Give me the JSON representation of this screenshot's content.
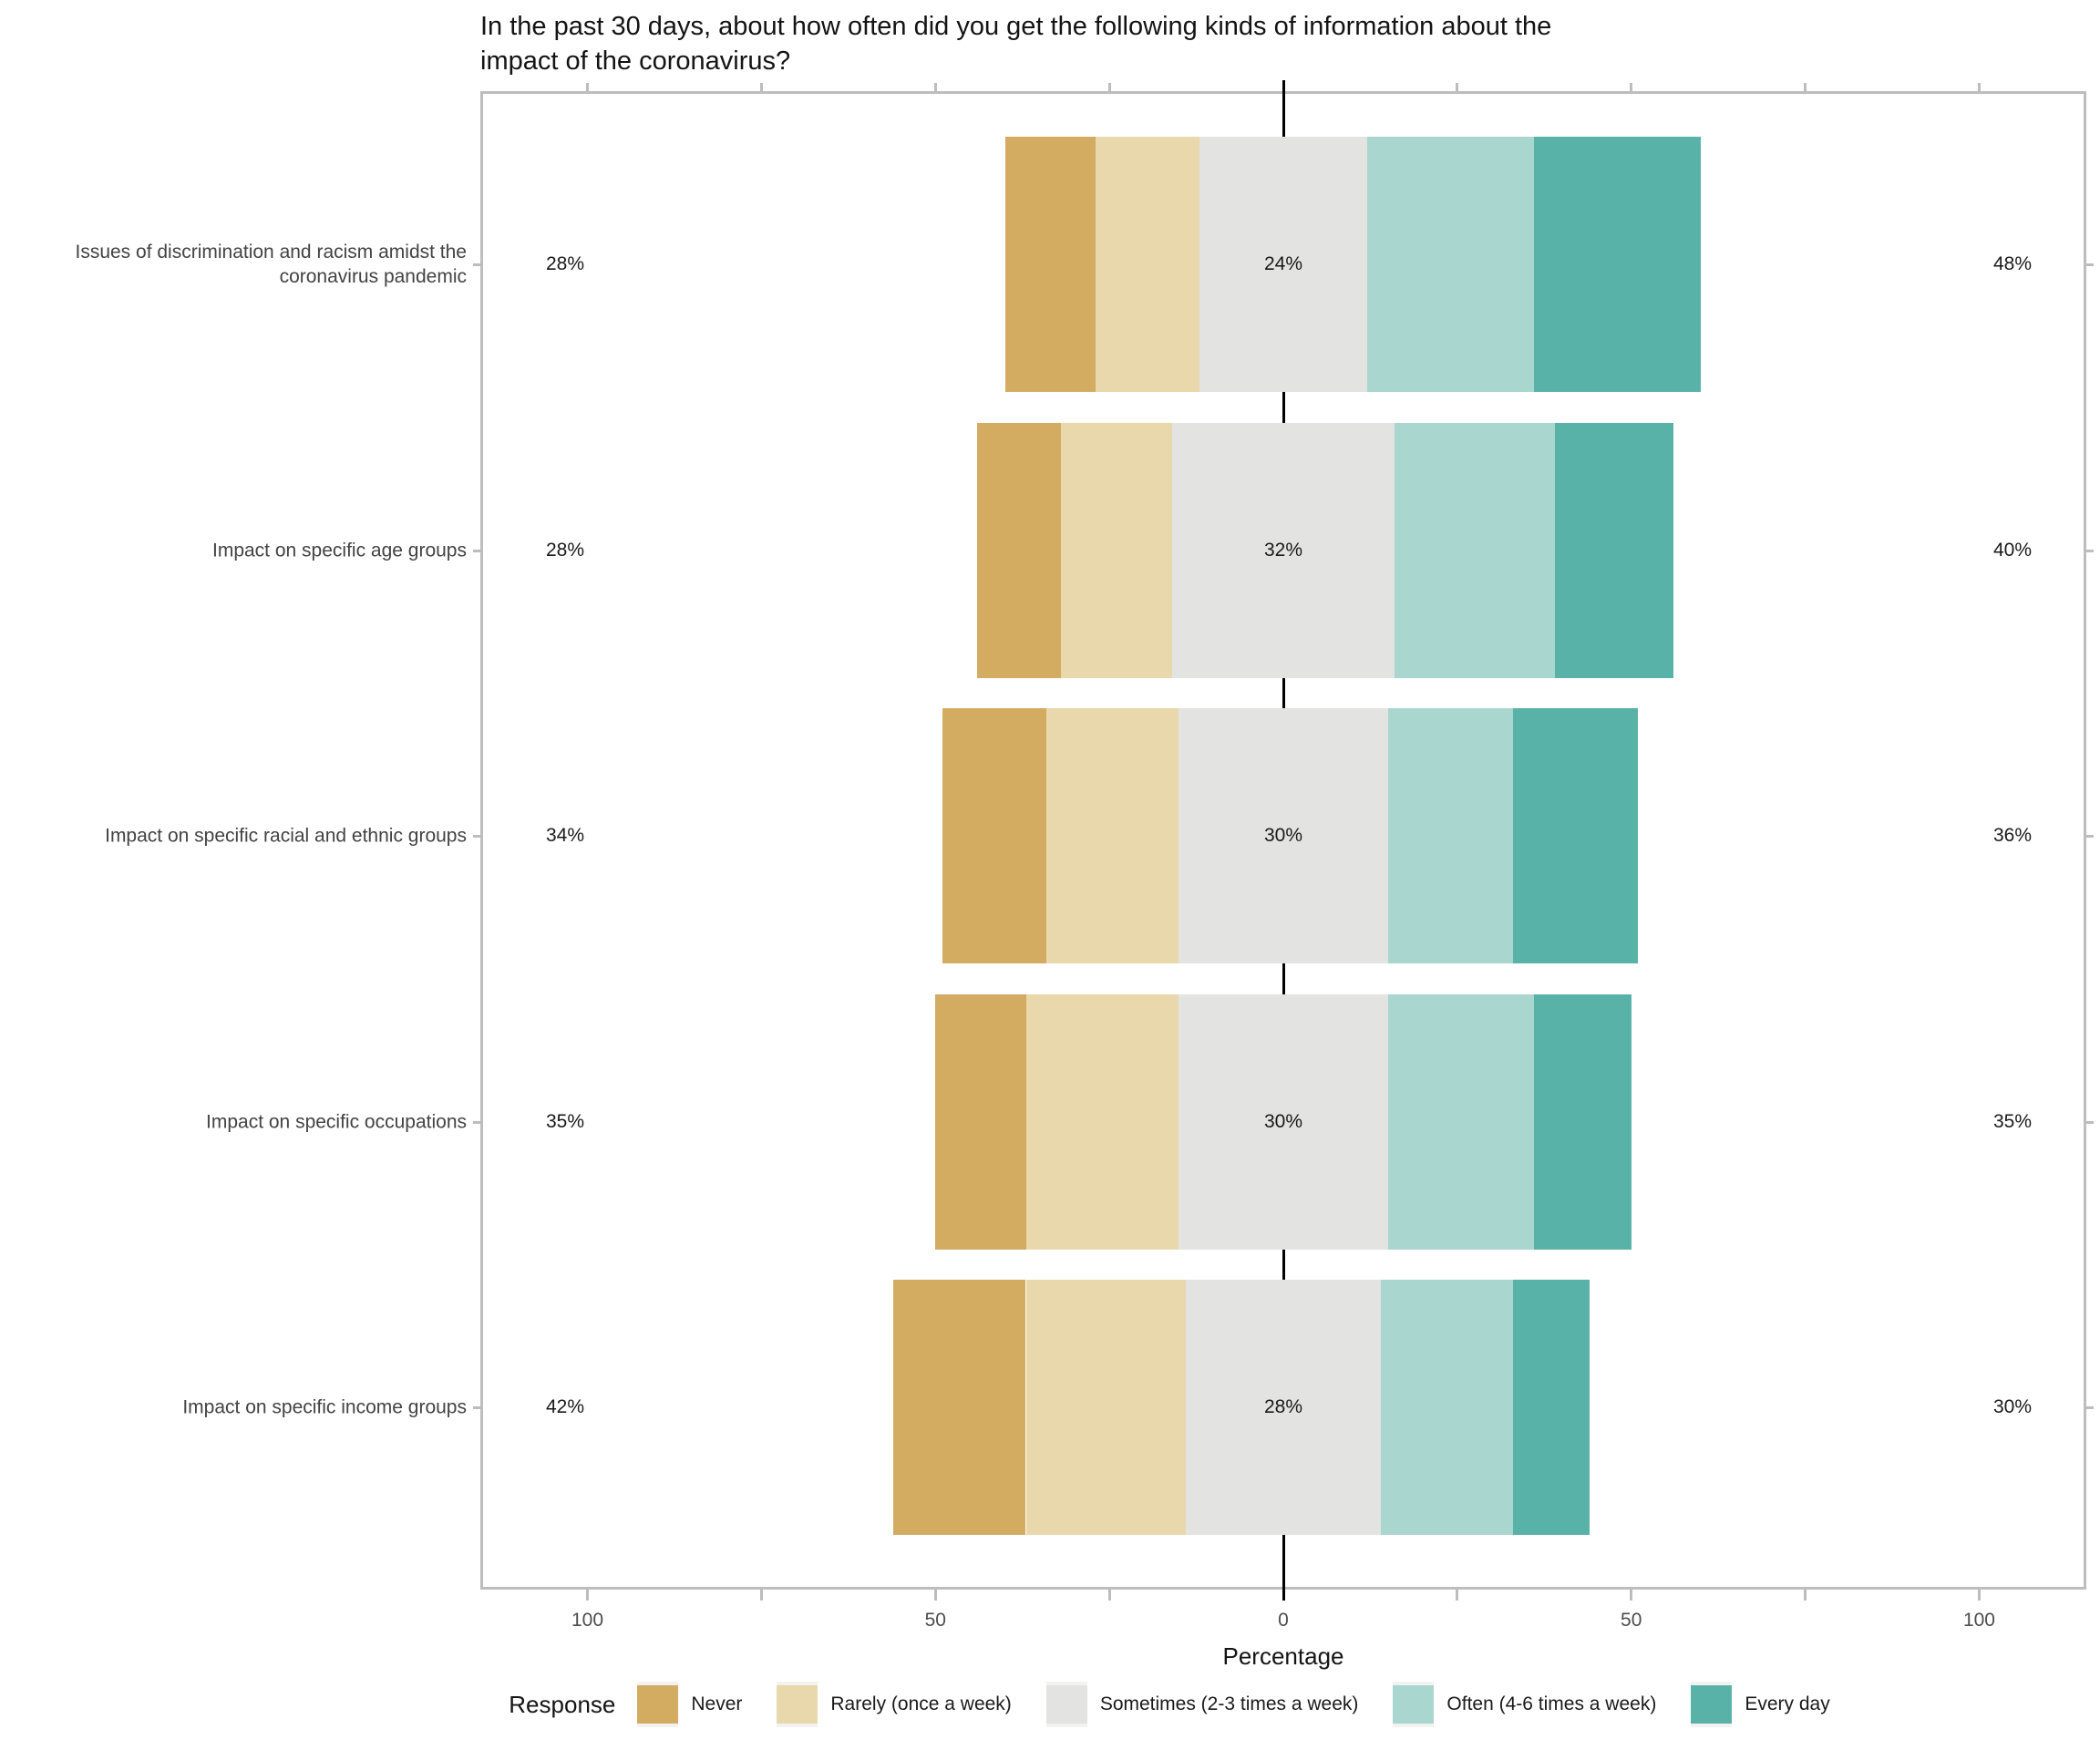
{
  "chart_data": {
    "type": "bar",
    "variant": "diverging-stacked-horizontal-likert",
    "title": "In the past 30 days, about how often did you get the following kinds of information about the impact of the coronavirus?",
    "title_lines": [
      "In the past 30 days, about how often did you get the following kinds of information about the",
      "impact of the coronavirus?"
    ],
    "xlabel": "Percentage",
    "xlim": [
      -115,
      115
    ],
    "x_major_ticks": [
      -100,
      -50,
      0,
      50,
      100
    ],
    "x_major_tick_labels": [
      "100",
      "50",
      "0",
      "50",
      "100"
    ],
    "x_minor_ticks": [
      -75,
      -25,
      25,
      75
    ],
    "grid": "off",
    "zero_reference_line": true,
    "legend_position": "bottom",
    "legend_title": "Response",
    "levels": [
      {
        "name": "Never",
        "color": "#D3AC62"
      },
      {
        "name": "Rarely (once a week)",
        "color": "#E9D8AC"
      },
      {
        "name": "Sometimes (2-3 times a week)",
        "color": "#E3E3E2"
      },
      {
        "name": "Often (4-6 times a week)",
        "color": "#A9D6CF"
      },
      {
        "name": "Every day",
        "color": "#59B2A8"
      }
    ],
    "categories": [
      "Issues of discrimination and racism amidst the coronavirus pandemic",
      "Impact on specific age groups",
      "Impact on specific racial and ethnic groups",
      "Impact on specific occupations",
      "Impact on specific income groups"
    ],
    "values": [
      [
        13,
        15,
        24,
        24,
        24
      ],
      [
        12,
        16,
        32,
        23,
        17
      ],
      [
        15,
        19,
        30,
        18,
        18
      ],
      [
        13,
        22,
        30,
        21,
        14
      ],
      [
        19,
        23,
        28,
        19,
        11
      ]
    ],
    "left_labels": [
      "28%",
      "28%",
      "34%",
      "35%",
      "42%"
    ],
    "center_labels": [
      "24%",
      "32%",
      "30%",
      "30%",
      "28%"
    ],
    "right_labels": [
      "48%",
      "40%",
      "36%",
      "35%",
      "30%"
    ],
    "left_label_meaning": "Never + Rarely",
    "center_label_meaning": "Sometimes",
    "right_label_meaning": "Often + Every day",
    "colors": {
      "panel_border": "#BDBDBD",
      "zero_line": "#000000",
      "axis_text": "#4D4D4D",
      "category_text": "#434343",
      "value_text": "#1a1a1a",
      "legend_key_bg": "#F2F2F2"
    }
  }
}
